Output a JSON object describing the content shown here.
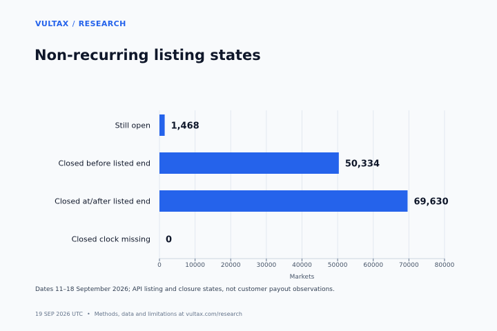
{
  "header": {
    "brand": "VULTAX",
    "section": "RESEARCH",
    "separator": "/"
  },
  "title": "Non-recurring listing states",
  "note": "Dates 11–18 September 2026; API listing and closure states, not customer payout observations.",
  "footer": {
    "date": "19 SEP 2026 UTC",
    "bullet": "•",
    "text": "Methods, data and limitations at vultax.com/research"
  },
  "colors": {
    "bar": "#2563eb",
    "grid": "#e2e8f0",
    "axis": "#64748b",
    "text": "#0f172a"
  },
  "chart_data": {
    "type": "bar",
    "orientation": "horizontal",
    "categories": [
      "Still open",
      "Closed before listed end",
      "Closed at/after listed end",
      "Closed clock missing"
    ],
    "values": [
      1468,
      50334,
      69630,
      0
    ],
    "value_labels": [
      "1,468",
      "50,334",
      "69,630",
      "0"
    ],
    "xlabel": "Markets",
    "xlim": [
      0,
      80000
    ],
    "xticks": [
      0,
      10000,
      20000,
      30000,
      40000,
      50000,
      60000,
      70000,
      80000
    ],
    "grid": "vertical"
  }
}
